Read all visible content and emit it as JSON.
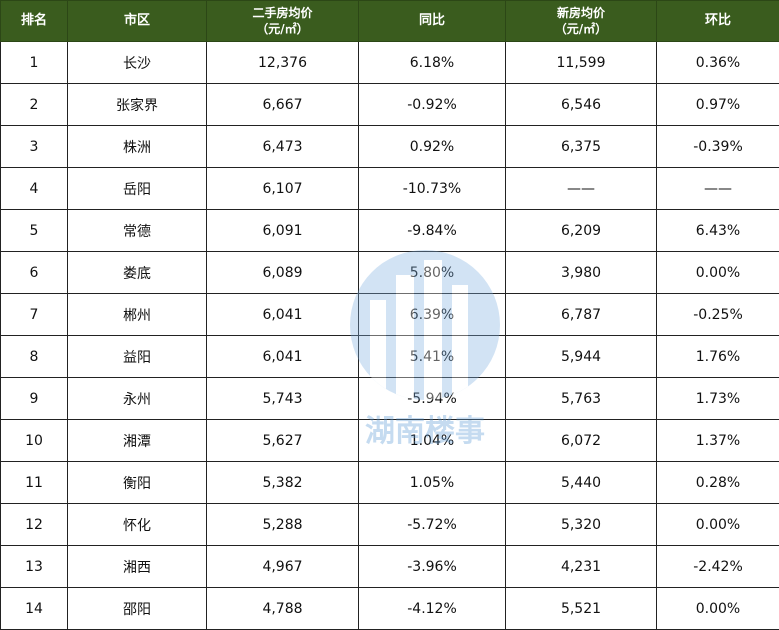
{
  "header": {
    "rank": "排名",
    "city": "市区",
    "second_hand_price": "二手房均价",
    "second_hand_unit": "（元/㎡）",
    "yoy": "同比",
    "new_price": "新房均价",
    "new_unit": "（元/㎡）",
    "mom": "环比"
  },
  "rows": [
    {
      "rank": "1",
      "city": "长沙",
      "second": "12,376",
      "yoy": "6.18%",
      "new": "11,599",
      "mom": "0.36%"
    },
    {
      "rank": "2",
      "city": "张家界",
      "second": "6,667",
      "yoy": "-0.92%",
      "new": "6,546",
      "mom": "0.97%"
    },
    {
      "rank": "3",
      "city": "株洲",
      "second": "6,473",
      "yoy": "0.92%",
      "new": "6,375",
      "mom": "-0.39%"
    },
    {
      "rank": "4",
      "city": "岳阳",
      "second": "6,107",
      "yoy": "-10.73%",
      "new": "——",
      "mom": "——"
    },
    {
      "rank": "5",
      "city": "常德",
      "second": "6,091",
      "yoy": "-9.84%",
      "new": "6,209",
      "mom": "6.43%"
    },
    {
      "rank": "6",
      "city": "娄底",
      "second": "6,089",
      "yoy": "5.80%",
      "new": "3,980",
      "mom": "0.00%"
    },
    {
      "rank": "7",
      "city": "郴州",
      "second": "6,041",
      "yoy": "6.39%",
      "new": "6,787",
      "mom": "-0.25%"
    },
    {
      "rank": "8",
      "city": "益阳",
      "second": "6,041",
      "yoy": "5.41%",
      "new": "5,944",
      "mom": "1.76%"
    },
    {
      "rank": "9",
      "city": "永州",
      "second": "5,743",
      "yoy": "-5.94%",
      "new": "5,763",
      "mom": "1.73%"
    },
    {
      "rank": "10",
      "city": "湘潭",
      "second": "5,627",
      "yoy": "1.04%",
      "new": "6,072",
      "mom": "1.37%"
    },
    {
      "rank": "11",
      "city": "衡阳",
      "second": "5,382",
      "yoy": "1.05%",
      "new": "5,440",
      "mom": "0.28%"
    },
    {
      "rank": "12",
      "city": "怀化",
      "second": "5,288",
      "yoy": "-5.72%",
      "new": "5,320",
      "mom": "0.00%"
    },
    {
      "rank": "13",
      "city": "湘西",
      "second": "4,967",
      "yoy": "-3.96%",
      "new": "4,231",
      "mom": "-2.42%"
    },
    {
      "rank": "14",
      "city": "邵阳",
      "second": "4,788",
      "yoy": "-4.12%",
      "new": "5,521",
      "mom": "0.00%"
    }
  ],
  "watermark": {
    "text": "湖南楼事",
    "color": "#5b9bd5"
  },
  "colors": {
    "header_bg": "#3a5c1e",
    "header_text": "#ffffff"
  }
}
